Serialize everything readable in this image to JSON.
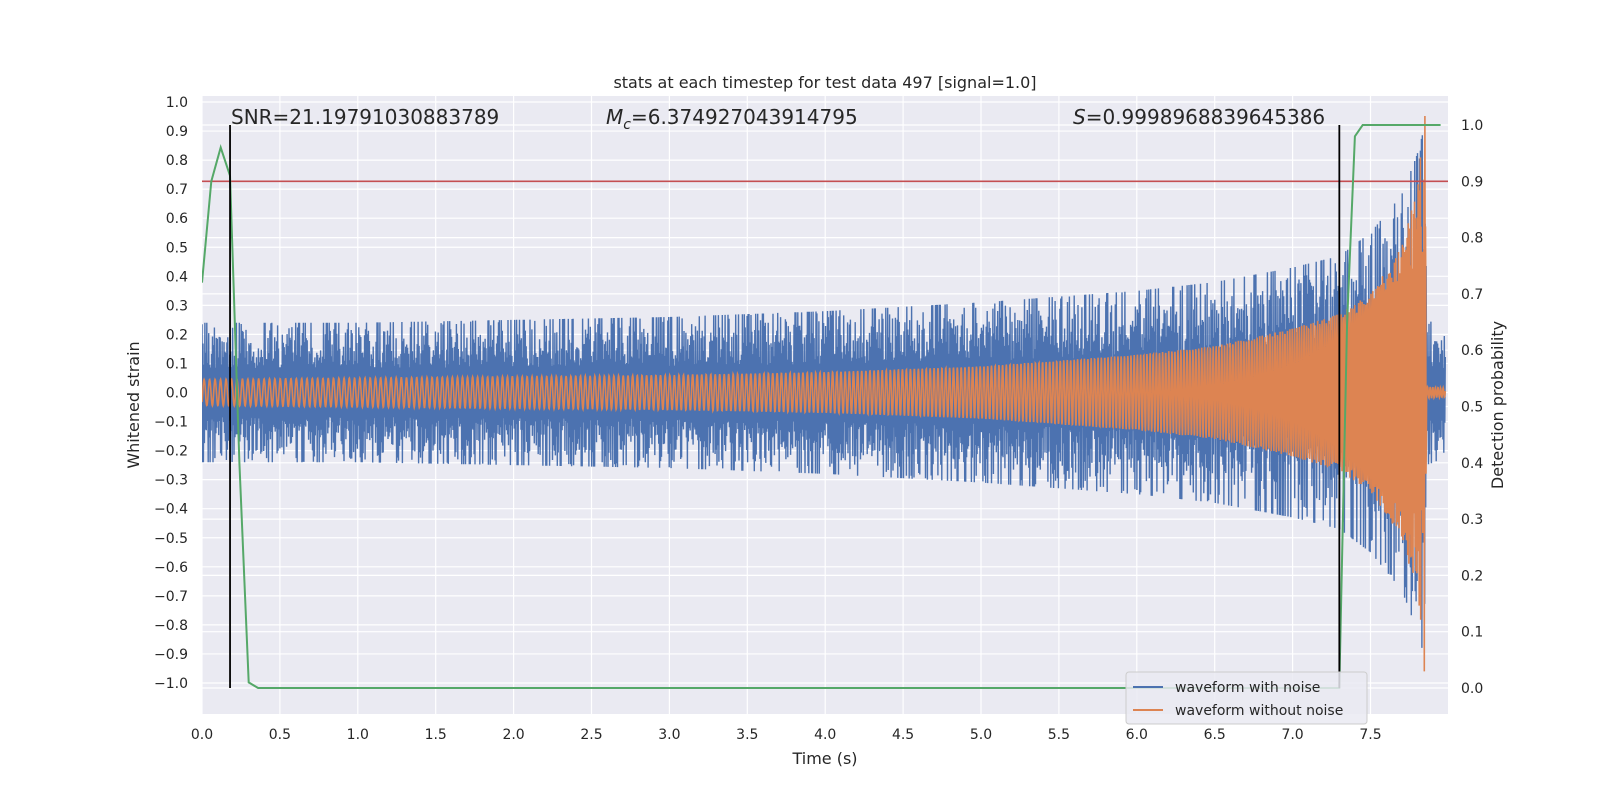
{
  "chart_data": {
    "type": "line",
    "title": "stats at each timestep for test data 497 [signal=1.0]",
    "xlabel": "Time (s)",
    "ylabel": "Whitened strain",
    "y2label": "Detection probability",
    "xlim": [
      0.0,
      8.0
    ],
    "ylim": [
      -1.1,
      1.03
    ],
    "y2lim": [
      -0.05,
      1.04
    ],
    "grid": true,
    "x_ticks": [
      "0.0",
      "0.5",
      "1.0",
      "1.5",
      "2.0",
      "2.5",
      "3.0",
      "3.5",
      "4.0",
      "4.5",
      "5.0",
      "5.5",
      "6.0",
      "6.5",
      "7.0",
      "7.5"
    ],
    "y_ticks": [
      "1.0",
      "0.9",
      "0.8",
      "0.7",
      "0.6",
      "0.5",
      "0.4",
      "0.3",
      "0.2",
      "0.1",
      "0.0",
      "−0.1",
      "−0.2",
      "−0.3",
      "−0.4",
      "−0.5",
      "−0.6",
      "−0.7",
      "−0.8",
      "−0.9",
      "−1.0"
    ],
    "y2_ticks": [
      "1.0",
      "0.9",
      "0.8",
      "0.7",
      "0.6",
      "0.5",
      "0.4",
      "0.3",
      "0.2",
      "0.1",
      "0.0"
    ],
    "annotations": {
      "snr": "SNR=21.19791030883789",
      "mc_symbol": "M",
      "mc_sub": "c",
      "mc_value": "=6.374927043914795",
      "s_symbol": "S",
      "s_value": "=0.9998968839645386"
    },
    "legend": {
      "placement": "lower-right",
      "entries": [
        "waveform with noise",
        "waveform without noise"
      ]
    },
    "series": [
      {
        "name": "waveform with noise",
        "color": "#4c72b0",
        "description": "noisy whitened strain, amplitude ~0.25 rising to ~0.9 near merger at t≈7.85 s",
        "envelope": [
          [
            0.0,
            0.24
          ],
          [
            1.0,
            0.24
          ],
          [
            2.0,
            0.25
          ],
          [
            3.0,
            0.26
          ],
          [
            4.0,
            0.28
          ],
          [
            5.0,
            0.31
          ],
          [
            6.0,
            0.35
          ],
          [
            6.5,
            0.38
          ],
          [
            7.0,
            0.43
          ],
          [
            7.3,
            0.47
          ],
          [
            7.5,
            0.55
          ],
          [
            7.7,
            0.68
          ],
          [
            7.8,
            0.82
          ],
          [
            7.85,
            0.92
          ],
          [
            7.86,
            0.25
          ],
          [
            8.0,
            0.22
          ]
        ]
      },
      {
        "name": "waveform without noise",
        "color": "#dd8452",
        "description": "chirp template, amplitude growing from ~0.045 to ~1.0 at t≈7.85 s",
        "envelope": [
          [
            0.0,
            0.045
          ],
          [
            1.0,
            0.05
          ],
          [
            2.0,
            0.055
          ],
          [
            3.0,
            0.06
          ],
          [
            4.0,
            0.07
          ],
          [
            5.0,
            0.09
          ],
          [
            6.0,
            0.13
          ],
          [
            6.5,
            0.16
          ],
          [
            7.0,
            0.22
          ],
          [
            7.3,
            0.27
          ],
          [
            7.5,
            0.34
          ],
          [
            7.7,
            0.5
          ],
          [
            7.8,
            0.7
          ],
          [
            7.85,
            1.0
          ],
          [
            7.86,
            0.02
          ],
          [
            8.0,
            0.015
          ]
        ]
      },
      {
        "name": "detection probability",
        "color": "#55a868",
        "axis": "right",
        "x": [
          0.0,
          0.06,
          0.12,
          0.18,
          0.24,
          0.3,
          0.36,
          0.5,
          1.0,
          2.0,
          3.0,
          4.0,
          5.0,
          6.0,
          7.0,
          7.3,
          7.35,
          7.4,
          7.45,
          7.6,
          7.8,
          7.95
        ],
        "y": [
          0.72,
          0.9,
          0.96,
          0.91,
          0.4,
          0.01,
          0.0,
          0.0,
          0.0,
          0.0,
          0.0,
          0.0,
          0.0,
          0.0,
          0.0,
          0.0,
          0.65,
          0.98,
          1.0,
          1.0,
          1.0,
          1.0
        ]
      }
    ],
    "threshold": {
      "color": "#c44e52",
      "axis": "right",
      "value": 0.9
    },
    "vlines": {
      "color": "#000000",
      "x": [
        0.18,
        7.3
      ],
      "y2_range": [
        0.0,
        1.0
      ]
    }
  }
}
